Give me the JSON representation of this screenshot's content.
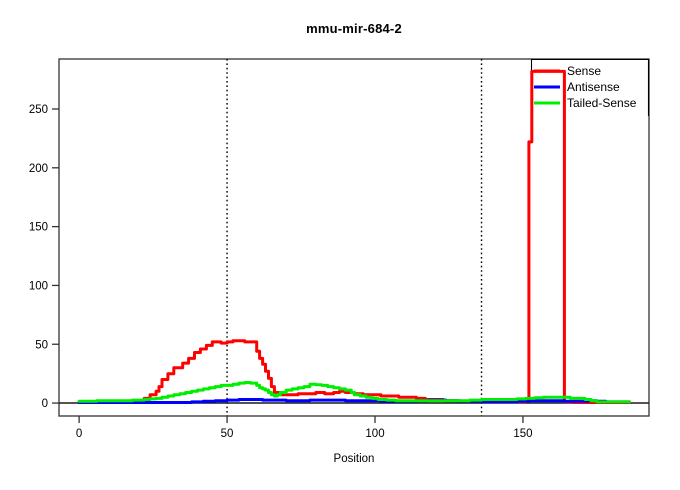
{
  "chart_data": {
    "type": "line",
    "title": "mmu-mir-684-2",
    "xlabel": "Position",
    "ylabel": "",
    "style": "step",
    "grid": false,
    "xlim": [
      -6.8,
      192.6
    ],
    "ylim": [
      -11,
      292.5
    ],
    "x_ticks": [
      0,
      50,
      100,
      150
    ],
    "y_ticks": [
      0,
      50,
      100,
      150,
      200,
      250
    ],
    "marker_positions": [
      50,
      136
    ],
    "zero_line": true,
    "axis_color": "#333333",
    "zero_line_color": "#1a1a1a",
    "marker_line_color": "#000000",
    "legend": {
      "position": "topright",
      "entries": [
        "Sense",
        "Antisense",
        "Tailed-Sense"
      ],
      "background": "#ffffff",
      "border_color": "#000000"
    },
    "series": [
      {
        "name": "Sense",
        "color": "#ff0000",
        "points": [
          [
            0,
            0.5
          ],
          [
            20,
            1
          ],
          [
            22,
            4
          ],
          [
            24,
            7
          ],
          [
            26,
            10
          ],
          [
            27,
            14
          ],
          [
            28,
            20
          ],
          [
            30,
            25
          ],
          [
            32,
            30
          ],
          [
            35,
            34
          ],
          [
            37,
            38
          ],
          [
            39,
            43
          ],
          [
            41,
            46
          ],
          [
            43,
            49
          ],
          [
            45,
            52
          ],
          [
            48,
            51
          ],
          [
            50,
            52
          ],
          [
            52,
            53
          ],
          [
            56,
            52
          ],
          [
            58,
            52
          ],
          [
            60,
            44
          ],
          [
            61,
            38
          ],
          [
            62,
            33
          ],
          [
            63,
            27
          ],
          [
            64,
            21
          ],
          [
            65,
            14
          ],
          [
            66,
            9
          ],
          [
            68,
            7
          ],
          [
            71,
            7
          ],
          [
            74,
            8
          ],
          [
            77,
            8
          ],
          [
            80,
            9
          ],
          [
            83,
            8
          ],
          [
            86,
            9
          ],
          [
            88,
            10
          ],
          [
            90,
            9
          ],
          [
            93,
            8
          ],
          [
            96,
            7
          ],
          [
            99,
            7
          ],
          [
            102,
            6
          ],
          [
            105,
            6
          ],
          [
            108,
            5
          ],
          [
            111,
            5
          ],
          [
            114,
            4
          ],
          [
            117,
            3
          ],
          [
            120,
            3
          ],
          [
            123,
            2
          ],
          [
            126,
            2
          ],
          [
            129,
            1.5
          ],
          [
            133,
            1.5
          ],
          [
            136,
            1
          ],
          [
            140,
            1
          ],
          [
            144,
            1
          ],
          [
            148,
            1
          ],
          [
            151,
            2
          ],
          [
            152,
            222
          ],
          [
            153,
            282
          ],
          [
            163,
            282
          ],
          [
            164,
            1
          ],
          [
            167,
            0.5
          ],
          [
            172,
            0.5
          ],
          [
            178,
            0.5
          ],
          [
            186,
            0.5
          ]
        ]
      },
      {
        "name": "Antisense",
        "color": "#0000ff",
        "points": [
          [
            0,
            0.5
          ],
          [
            8,
            0.5
          ],
          [
            16,
            0.5
          ],
          [
            24,
            0.5
          ],
          [
            32,
            0.5
          ],
          [
            38,
            1
          ],
          [
            42,
            1.5
          ],
          [
            46,
            2
          ],
          [
            50,
            2.5
          ],
          [
            54,
            3
          ],
          [
            58,
            3
          ],
          [
            62,
            2.5
          ],
          [
            66,
            2.5
          ],
          [
            70,
            2
          ],
          [
            74,
            2
          ],
          [
            78,
            2.5
          ],
          [
            82,
            2.5
          ],
          [
            86,
            2.5
          ],
          [
            90,
            2
          ],
          [
            94,
            2
          ],
          [
            98,
            2
          ],
          [
            102,
            1.5
          ],
          [
            106,
            1.5
          ],
          [
            110,
            1.5
          ],
          [
            114,
            2
          ],
          [
            118,
            2.5
          ],
          [
            121,
            2.5
          ],
          [
            124,
            2
          ],
          [
            128,
            1.5
          ],
          [
            132,
            1.5
          ],
          [
            136,
            1
          ],
          [
            140,
            1
          ],
          [
            144,
            1
          ],
          [
            148,
            1.5
          ],
          [
            152,
            2
          ],
          [
            156,
            2
          ],
          [
            160,
            2
          ],
          [
            164,
            1.5
          ],
          [
            168,
            1.5
          ],
          [
            172,
            2
          ],
          [
            175,
            1.5
          ],
          [
            178,
            1
          ],
          [
            182,
            1
          ],
          [
            186,
            1
          ]
        ]
      },
      {
        "name": "Tailed-Sense",
        "color": "#00ee00",
        "points": [
          [
            0,
            1.5
          ],
          [
            6,
            2
          ],
          [
            12,
            2
          ],
          [
            18,
            2.5
          ],
          [
            22,
            3
          ],
          [
            24,
            3.5
          ],
          [
            26,
            4
          ],
          [
            28,
            5
          ],
          [
            30,
            6
          ],
          [
            32,
            7
          ],
          [
            34,
            8
          ],
          [
            36,
            9
          ],
          [
            38,
            10
          ],
          [
            40,
            11
          ],
          [
            42,
            12
          ],
          [
            44,
            13
          ],
          [
            46,
            14
          ],
          [
            48,
            15
          ],
          [
            50,
            15
          ],
          [
            52,
            16
          ],
          [
            54,
            17
          ],
          [
            56,
            17.5
          ],
          [
            58,
            17
          ],
          [
            60,
            15
          ],
          [
            61,
            13
          ],
          [
            62,
            12
          ],
          [
            63,
            11
          ],
          [
            64,
            9
          ],
          [
            65,
            7
          ],
          [
            66,
            6
          ],
          [
            67,
            7
          ],
          [
            68,
            9
          ],
          [
            70,
            11
          ],
          [
            72,
            12
          ],
          [
            74,
            13
          ],
          [
            76,
            14
          ],
          [
            78,
            16
          ],
          [
            80,
            15.5
          ],
          [
            82,
            15
          ],
          [
            84,
            14
          ],
          [
            86,
            13
          ],
          [
            88,
            12
          ],
          [
            90,
            11
          ],
          [
            92,
            9
          ],
          [
            93,
            7
          ],
          [
            95,
            6
          ],
          [
            97,
            5
          ],
          [
            99,
            4
          ],
          [
            101,
            3
          ],
          [
            104,
            2.5
          ],
          [
            107,
            2
          ],
          [
            112,
            2
          ],
          [
            117,
            2
          ],
          [
            122,
            2
          ],
          [
            127,
            2
          ],
          [
            132,
            2.5
          ],
          [
            136,
            3
          ],
          [
            140,
            3
          ],
          [
            144,
            3
          ],
          [
            148,
            3.5
          ],
          [
            151,
            4
          ],
          [
            154,
            4.5
          ],
          [
            157,
            5
          ],
          [
            160,
            5
          ],
          [
            163,
            5
          ],
          [
            166,
            4
          ],
          [
            169,
            4
          ],
          [
            171,
            3
          ],
          [
            173,
            2
          ],
          [
            175,
            1
          ],
          [
            179,
            1
          ],
          [
            183,
            1
          ],
          [
            186,
            1
          ]
        ]
      }
    ]
  }
}
